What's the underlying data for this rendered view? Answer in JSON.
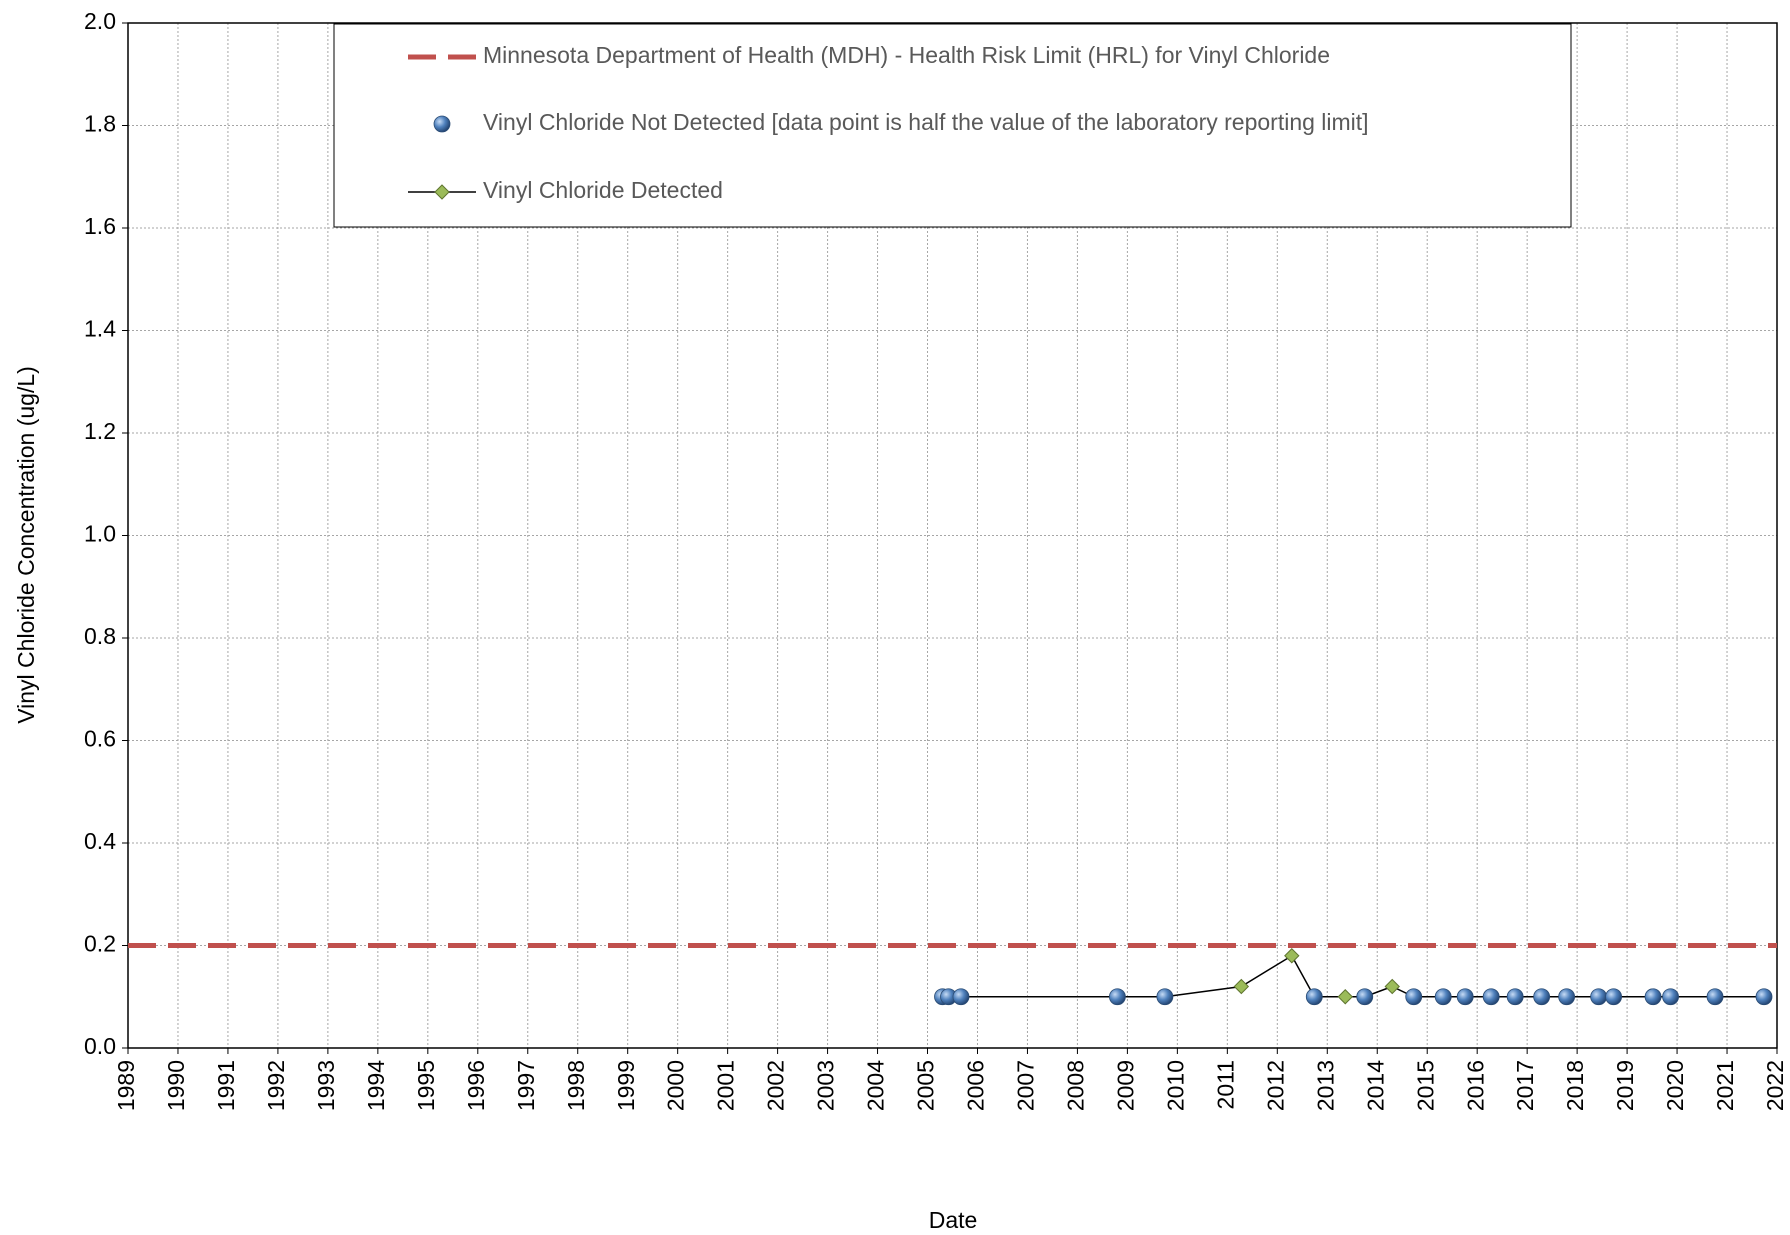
{
  "chart_data": {
    "type": "line",
    "ylabel": "Vinyl Chloride Concentration (ug/L)",
    "xlabel": "Date",
    "xlim": [
      1989,
      2022
    ],
    "xticks": [
      1989,
      1990,
      1991,
      1992,
      1993,
      1994,
      1995,
      1996,
      1997,
      1998,
      1999,
      2000,
      2001,
      2002,
      2003,
      2004,
      2005,
      2006,
      2007,
      2008,
      2009,
      2010,
      2011,
      2012,
      2013,
      2014,
      2015,
      2016,
      2017,
      2018,
      2019,
      2020,
      2021,
      2022
    ],
    "ylim": [
      0,
      2
    ],
    "yticks": [
      {
        "value": 0,
        "label": "0.0"
      },
      {
        "value": 0.2,
        "label": "0.2"
      },
      {
        "value": 0.4,
        "label": "0.4"
      },
      {
        "value": 0.6,
        "label": "0.6"
      },
      {
        "value": 0.8,
        "label": "0.8"
      },
      {
        "value": 1,
        "label": "1.0"
      },
      {
        "value": 1.2,
        "label": "1.2"
      },
      {
        "value": 1.4,
        "label": "1.4"
      },
      {
        "value": 1.6,
        "label": "1.6"
      },
      {
        "value": 1.8,
        "label": "1.8"
      },
      {
        "value": 2,
        "label": "2.0"
      }
    ],
    "grid": true,
    "legend": "top",
    "series": [
      {
        "name": "Minnesota Department of Health (MDH) - Health Risk Limit (HRL) for Vinyl Chloride",
        "color": "#c0504d",
        "style": "dashed",
        "x": [
          1989,
          2022
        ],
        "values": [
          0.2,
          0.2
        ]
      },
      {
        "name": "Vinyl Chloride Not Detected [data point is half the value of the laboratory reporting limit]",
        "color": "#4f81bd",
        "style": "markers",
        "x": [
          2005.3,
          2005.42,
          2005.67,
          2008.8,
          2009.75,
          2012.74,
          2013.75,
          2014.73,
          2015.32,
          2015.76,
          2016.28,
          2016.76,
          2017.29,
          2017.79,
          2018.43,
          2018.73,
          2019.52,
          2019.87,
          2020.76,
          2021.74
        ],
        "values": [
          0.1,
          0.1,
          0.1,
          0.1,
          0.1,
          0.1,
          0.1,
          0.1,
          0.1,
          0.1,
          0.1,
          0.1,
          0.1,
          0.1,
          0.1,
          0.1,
          0.1,
          0.1,
          0.1,
          0.1
        ]
      },
      {
        "name": "Vinyl Chloride Detected",
        "color": "#9bbb59",
        "style": "line-markers",
        "x": [
          2011.28,
          2012.29,
          2013.36,
          2014.3
        ],
        "values": [
          0.12,
          0.18,
          0.1,
          0.12
        ]
      }
    ]
  }
}
